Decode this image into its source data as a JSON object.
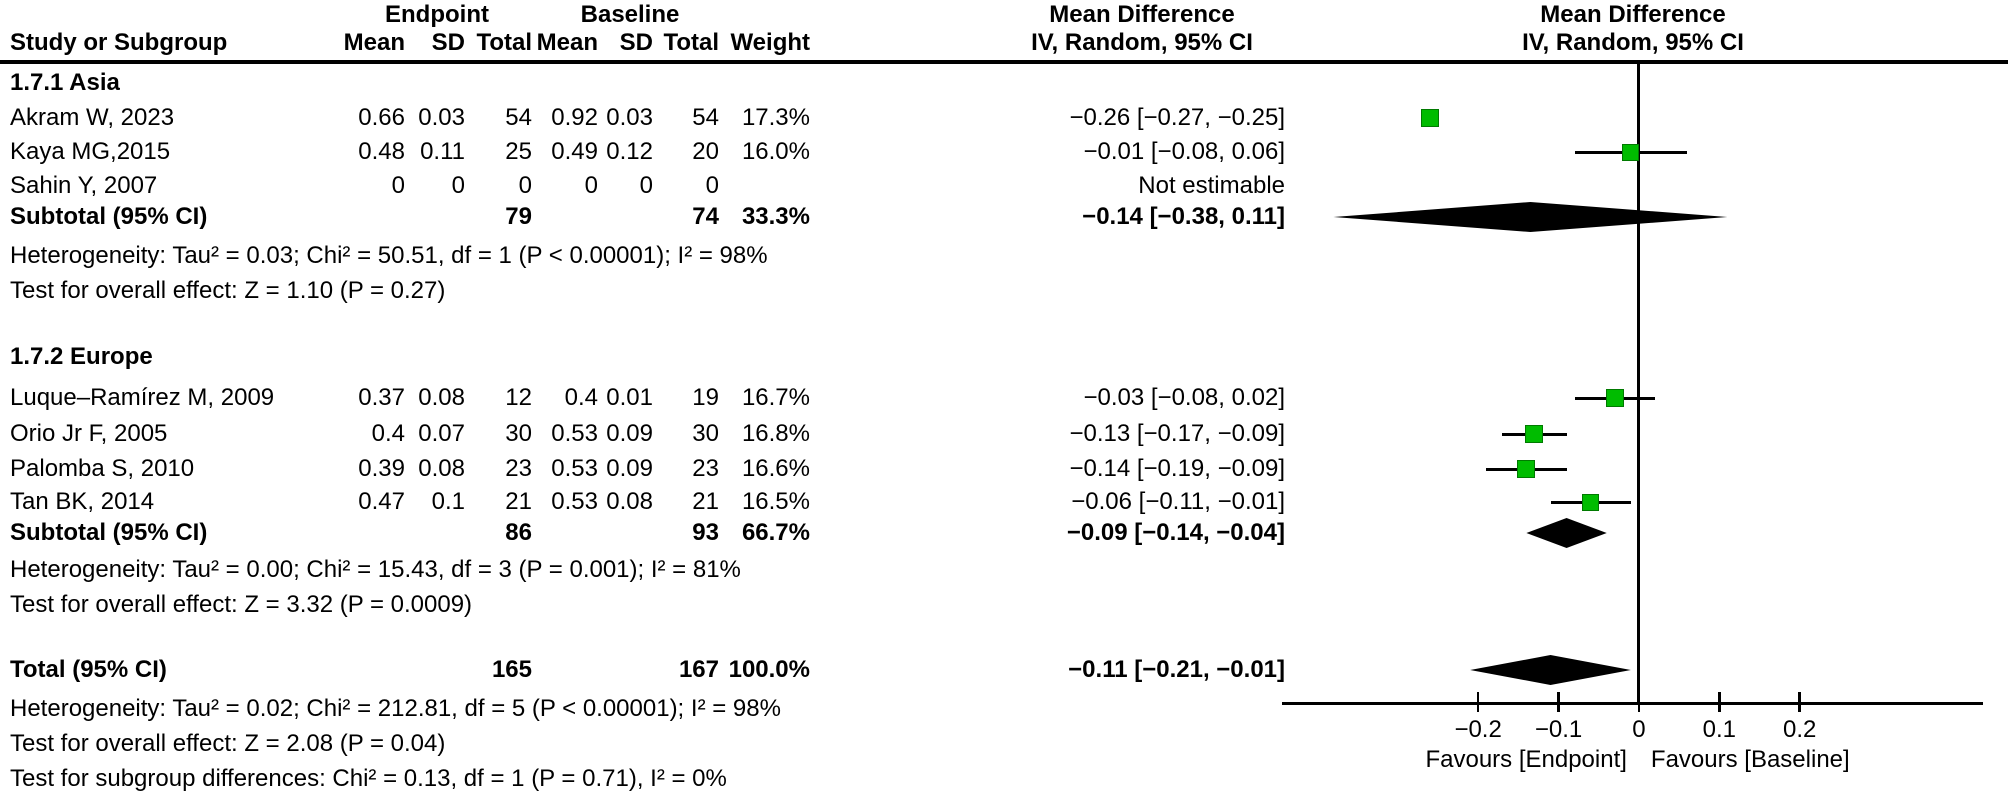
{
  "header": {
    "endpoint": "Endpoint",
    "baseline": "Baseline",
    "mean_difference": "Mean Difference",
    "study_col": "Study or Subgroup",
    "mean_col": "Mean",
    "sd_col": "SD",
    "total_col": "Total",
    "weight_col": "Weight",
    "method_col": "IV, Random, 95% CI"
  },
  "colors": {
    "marker_fill": "#00bc00",
    "marker_border": "#007a00",
    "diamond": "#000000",
    "line": "#000000",
    "text": "#000000"
  },
  "chart_data": {
    "type": "forest",
    "effect_measure": "Mean Difference",
    "method": "IV, Random, 95% CI",
    "axis": {
      "min": -0.444,
      "max": 0.428,
      "ticks": [
        -0.2,
        -0.1,
        0,
        0.1,
        0.2
      ],
      "tick_labels": [
        "−0.2",
        "−0.1",
        "0",
        "0.1",
        "0.2"
      ],
      "favours_left": "Favours [Endpoint]",
      "favours_right": "Favours [Baseline]"
    },
    "subgroups": [
      {
        "label": "1.7.1 Asia",
        "studies": [
          {
            "name": "Akram W, 2023",
            "endpoint_mean": "0.66",
            "endpoint_sd": "0.03",
            "endpoint_total": "54",
            "baseline_mean": "0.92",
            "baseline_sd": "0.03",
            "baseline_total": "54",
            "weight": "17.3%",
            "weight_val": 17.3,
            "ci_text": "−0.26 [−0.27, −0.25]",
            "est": -0.26,
            "lo": -0.27,
            "hi": -0.25
          },
          {
            "name": "Kaya MG,2015",
            "endpoint_mean": "0.48",
            "endpoint_sd": "0.11",
            "endpoint_total": "25",
            "baseline_mean": "0.49",
            "baseline_sd": "0.12",
            "baseline_total": "20",
            "weight": "16.0%",
            "weight_val": 16.0,
            "ci_text": "−0.01 [−0.08, 0.06]",
            "est": -0.01,
            "lo": -0.08,
            "hi": 0.06
          },
          {
            "name": "Sahin Y, 2007",
            "endpoint_mean": "0",
            "endpoint_sd": "0",
            "endpoint_total": "0",
            "baseline_mean": "0",
            "baseline_sd": "0",
            "baseline_total": "0",
            "weight": "",
            "weight_val": null,
            "ci_text": "Not estimable",
            "est": null,
            "lo": null,
            "hi": null
          }
        ],
        "subtotal": {
          "label": "Subtotal (95% CI)",
          "endpoint_total": "79",
          "baseline_total": "74",
          "weight": "33.3%",
          "ci_text": "−0.14 [−0.38, 0.11]",
          "est": -0.14,
          "lo": -0.38,
          "hi": 0.11
        },
        "heterogeneity": "Heterogeneity: Tau² = 0.03; Chi² = 50.51, df = 1 (P < 0.00001); I² = 98%",
        "overall_effect": "Test for overall effect: Z = 1.10 (P = 0.27)"
      },
      {
        "label": "1.7.2 Europe",
        "studies": [
          {
            "name": "Luque–Ramírez M, 2009",
            "endpoint_mean": "0.37",
            "endpoint_sd": "0.08",
            "endpoint_total": "12",
            "baseline_mean": "0.4",
            "baseline_sd": "0.01",
            "baseline_total": "19",
            "weight": "16.7%",
            "weight_val": 16.7,
            "ci_text": "−0.03 [−0.08, 0.02]",
            "est": -0.03,
            "lo": -0.08,
            "hi": 0.02
          },
          {
            "name": "Orio Jr F, 2005",
            "endpoint_mean": "0.4",
            "endpoint_sd": "0.07",
            "endpoint_total": "30",
            "baseline_mean": "0.53",
            "baseline_sd": "0.09",
            "baseline_total": "30",
            "weight": "16.8%",
            "weight_val": 16.8,
            "ci_text": "−0.13 [−0.17, −0.09]",
            "est": -0.13,
            "lo": -0.17,
            "hi": -0.09
          },
          {
            "name": "Palomba S, 2010",
            "endpoint_mean": "0.39",
            "endpoint_sd": "0.08",
            "endpoint_total": "23",
            "baseline_mean": "0.53",
            "baseline_sd": "0.09",
            "baseline_total": "23",
            "weight": "16.6%",
            "weight_val": 16.6,
            "ci_text": "−0.14 [−0.19, −0.09]",
            "est": -0.14,
            "lo": -0.19,
            "hi": -0.09
          },
          {
            "name": "Tan BK, 2014",
            "endpoint_mean": "0.47",
            "endpoint_sd": "0.1",
            "endpoint_total": "21",
            "baseline_mean": "0.53",
            "baseline_sd": "0.08",
            "baseline_total": "21",
            "weight": "16.5%",
            "weight_val": 16.5,
            "ci_text": "−0.06 [−0.11, −0.01]",
            "est": -0.06,
            "lo": -0.11,
            "hi": -0.01
          }
        ],
        "subtotal": {
          "label": "Subtotal (95% CI)",
          "endpoint_total": "86",
          "baseline_total": "93",
          "weight": "66.7%",
          "ci_text": "−0.09 [−0.14, −0.04]",
          "est": -0.09,
          "lo": -0.14,
          "hi": -0.04
        },
        "heterogeneity": "Heterogeneity: Tau² = 0.00; Chi² = 15.43, df = 3 (P = 0.001); I² = 81%",
        "overall_effect": "Test for overall effect: Z = 3.32 (P = 0.0009)"
      }
    ],
    "total": {
      "label": "Total (95% CI)",
      "endpoint_total": "165",
      "baseline_total": "167",
      "weight": "100.0%",
      "ci_text": "−0.11 [−0.21, −0.01]",
      "est": -0.11,
      "lo": -0.21,
      "hi": -0.01
    },
    "total_heterogeneity": "Heterogeneity: Tau² = 0.02; Chi² = 212.81, df = 5 (P < 0.00001); I² = 98%",
    "total_overall_effect": "Test for overall effect: Z = 2.08 (P = 0.04)",
    "subgroup_differences": "Test for subgroup differences: Chi² = 0.13, df = 1 (P = 0.71), I² = 0%"
  }
}
